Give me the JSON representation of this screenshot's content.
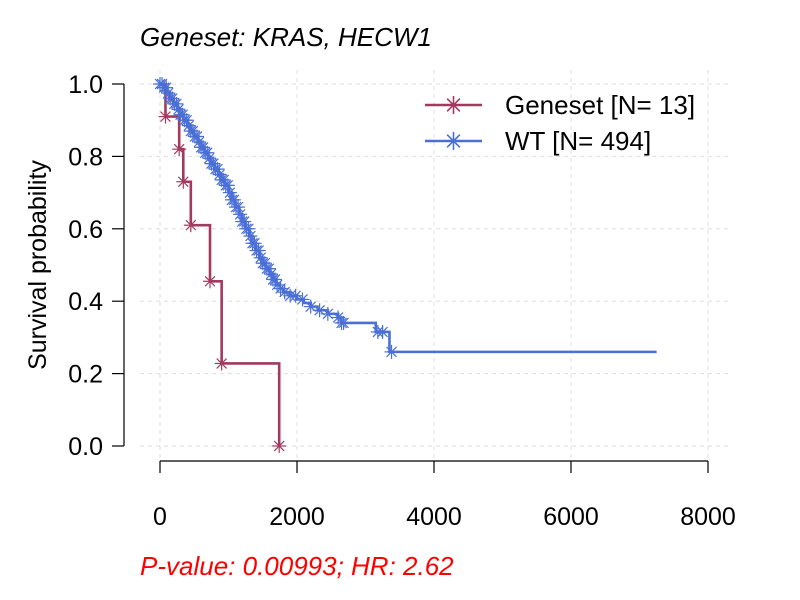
{
  "chart_data": {
    "type": "line",
    "title": "Geneset: KRAS, HECW1",
    "subtitle": "P-value: 0.00993; HR: 2.62",
    "subtitle_color": "#ff0000",
    "xlabel": "",
    "ylabel": "Survival probability",
    "xlim": [
      0,
      8000
    ],
    "ylim": [
      0,
      1
    ],
    "x_ticks": [
      0,
      2000,
      4000,
      6000,
      8000
    ],
    "y_ticks": [
      0.0,
      0.2,
      0.4,
      0.6,
      0.8,
      1.0
    ],
    "x_tick_labels": [
      "0",
      "2000",
      "4000",
      "6000",
      "8000"
    ],
    "y_tick_labels": [
      "0.0",
      "0.2",
      "0.4",
      "0.6",
      "0.8",
      "1.0"
    ],
    "grid": true,
    "legend_position": "top-right",
    "series": [
      {
        "name": "Geneset [N= 13]",
        "color": "#a23a5e",
        "steps": [
          [
            0,
            1.0
          ],
          [
            80,
            0.91
          ],
          [
            280,
            0.82
          ],
          [
            340,
            0.73
          ],
          [
            450,
            0.61
          ],
          [
            730,
            0.455
          ],
          [
            900,
            0.228
          ],
          [
            1740,
            0.0
          ]
        ],
        "censor_x": [
          80,
          280,
          340,
          450,
          730,
          900,
          1740
        ],
        "end_x": 1740
      },
      {
        "name": "WT [N= 494]",
        "color": "#4a6fd6",
        "steps": [
          [
            0,
            1.0
          ],
          [
            50,
            0.99
          ],
          [
            100,
            0.975
          ],
          [
            150,
            0.96
          ],
          [
            200,
            0.945
          ],
          [
            250,
            0.93
          ],
          [
            300,
            0.915
          ],
          [
            350,
            0.9
          ],
          [
            400,
            0.885
          ],
          [
            450,
            0.87
          ],
          [
            500,
            0.855
          ],
          [
            550,
            0.84
          ],
          [
            600,
            0.825
          ],
          [
            650,
            0.81
          ],
          [
            700,
            0.795
          ],
          [
            750,
            0.78
          ],
          [
            800,
            0.765
          ],
          [
            850,
            0.75
          ],
          [
            900,
            0.735
          ],
          [
            950,
            0.72
          ],
          [
            1000,
            0.7
          ],
          [
            1050,
            0.68
          ],
          [
            1100,
            0.66
          ],
          [
            1150,
            0.64
          ],
          [
            1200,
            0.62
          ],
          [
            1250,
            0.6
          ],
          [
            1300,
            0.58
          ],
          [
            1350,
            0.56
          ],
          [
            1400,
            0.54
          ],
          [
            1450,
            0.52
          ],
          [
            1500,
            0.505
          ],
          [
            1550,
            0.49
          ],
          [
            1600,
            0.475
          ],
          [
            1650,
            0.46
          ],
          [
            1700,
            0.445
          ],
          [
            1750,
            0.435
          ],
          [
            1800,
            0.425
          ],
          [
            1900,
            0.415
          ],
          [
            2000,
            0.405
          ],
          [
            2100,
            0.395
          ],
          [
            2200,
            0.385
          ],
          [
            2300,
            0.375
          ],
          [
            2450,
            0.365
          ],
          [
            2600,
            0.355
          ],
          [
            2650,
            0.34
          ],
          [
            3150,
            0.315
          ],
          [
            3350,
            0.26
          ]
        ],
        "censor_x": [
          0,
          30,
          60,
          90,
          120,
          150,
          180,
          210,
          240,
          270,
          300,
          330,
          360,
          390,
          420,
          450,
          480,
          510,
          540,
          570,
          600,
          630,
          660,
          690,
          720,
          750,
          780,
          810,
          840,
          870,
          900,
          930,
          960,
          990,
          1020,
          1050,
          1080,
          1110,
          1140,
          1170,
          1200,
          1230,
          1260,
          1290,
          1320,
          1350,
          1380,
          1410,
          1440,
          1470,
          1500,
          1530,
          1560,
          1590,
          1620,
          1650,
          1680,
          1710,
          1760,
          1820,
          1900,
          1980,
          2080,
          2200,
          2330,
          2450,
          2600,
          2650,
          2680,
          3180,
          3250,
          3380
        ],
        "end_x": 7250
      }
    ]
  }
}
